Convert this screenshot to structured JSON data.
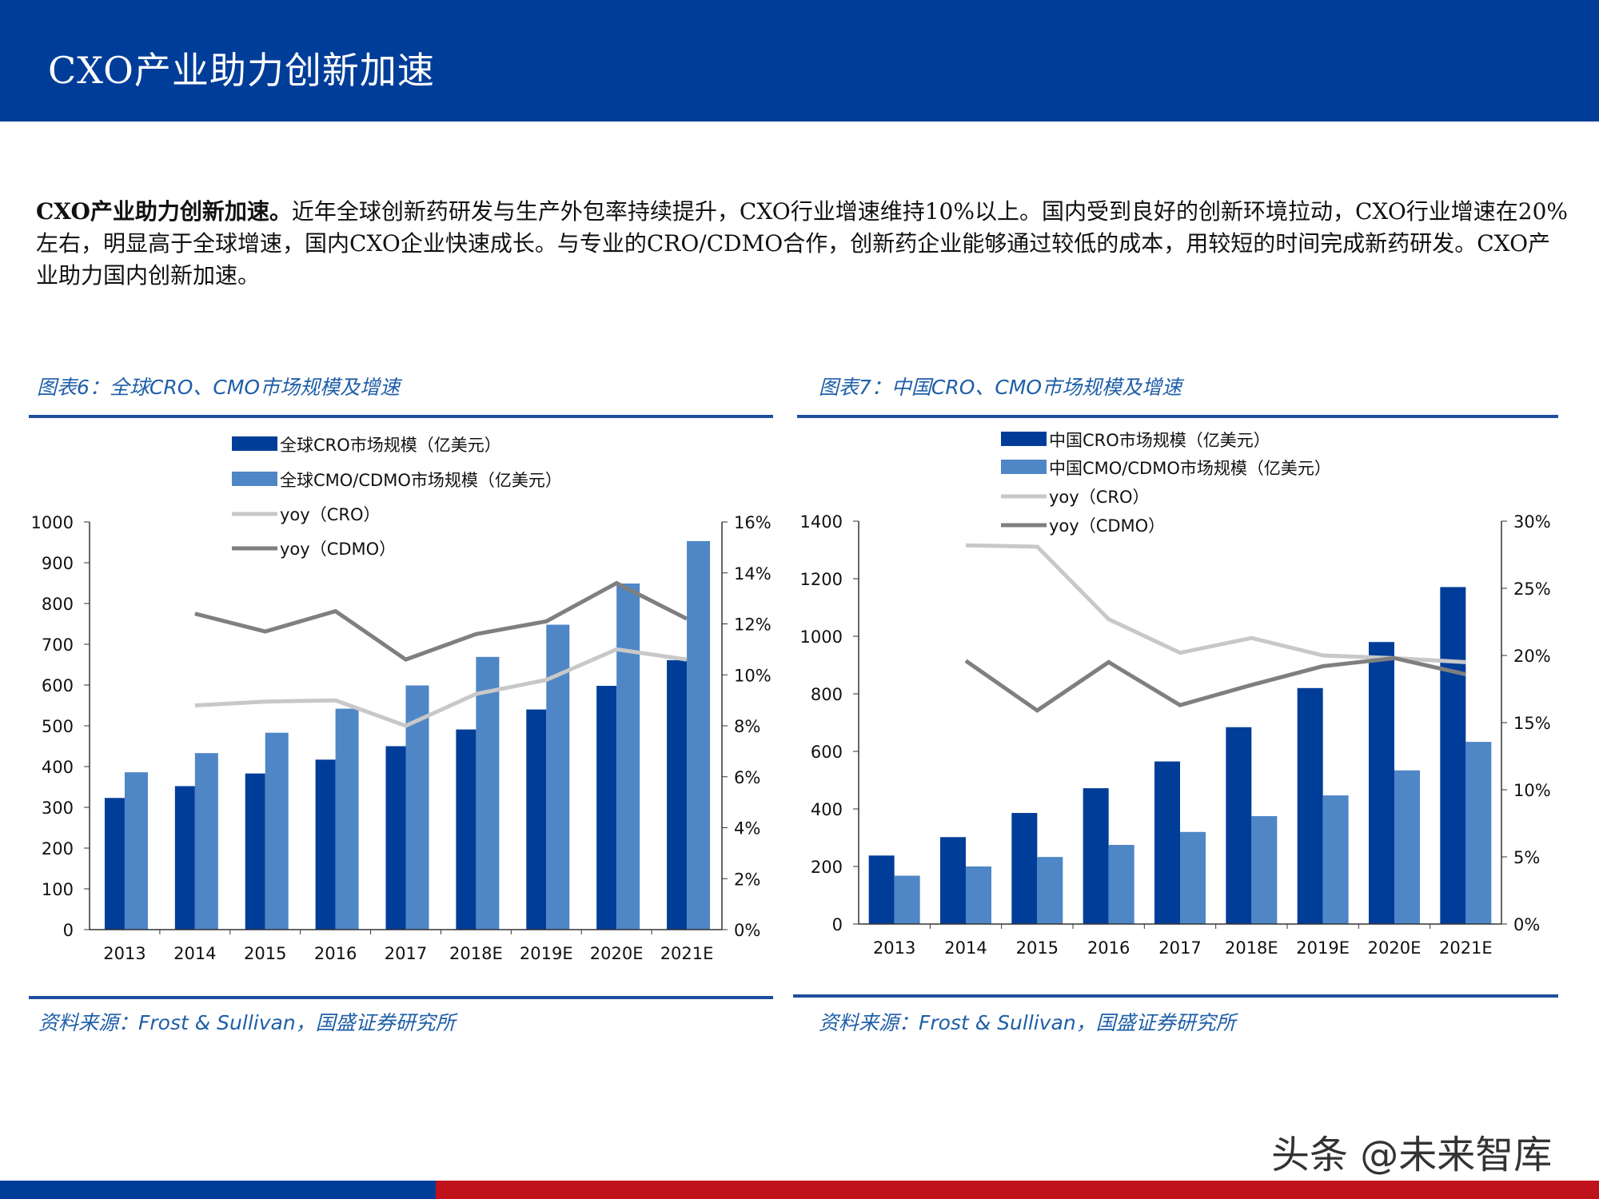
{
  "header": {
    "title": "CXO产业助力创新加速"
  },
  "paragraph": {
    "lead": "CXO产业助力创新加速。",
    "body": "近年全球创新药研发与生产外包率持续提升，CXO行业增速维持10%以上。国内受到良好的创新环境拉动，CXO行业增速在20%左右，明显高于全球增速，国内CXO企业快速成长。与专业的CRO/CDMO合作，创新药企业能够通过较低的成本，用较短的时间完成新药研发。CXO产业助力国内创新加速。"
  },
  "charts": [
    {
      "title": "图表6：全球CRO、CMO市场规模及增速",
      "source": "资料来源：Frost & Sullivan，国盛证券研究所"
    },
    {
      "title": "图表7：中国CRO、CMO市场规模及增速",
      "source": "资料来源：Frost & Sullivan，国盛证券研究所"
    }
  ],
  "watermark": "头条 @未来智库",
  "colors": {
    "header": "#003d99",
    "cro_bar": "#003d99",
    "cmo_bar": "#4f86c6",
    "yoy_cro": "#c8c8c8",
    "yoy_cdmo": "#7f7f7f",
    "footer_red": "#c0121b"
  },
  "chart_data": [
    {
      "type": "bar+line",
      "categories": [
        "2013",
        "2014",
        "2015",
        "2016",
        "2017",
        "2018E",
        "2019E",
        "2020E",
        "2021E"
      ],
      "ylim": [
        0,
        1000
      ],
      "yticks": [
        "0",
        "100",
        "200",
        "300",
        "400",
        "500",
        "600",
        "700",
        "800",
        "900",
        "1000"
      ],
      "y2lim": [
        0,
        16
      ],
      "y2ticks": [
        "0%",
        "2%",
        "4%",
        "6%",
        "8%",
        "10%",
        "12%",
        "14%",
        "16%"
      ],
      "legend": "top-left",
      "series": [
        {
          "name": "全球CRO市场规模（亿美元）",
          "type": "bar",
          "values": [
            323,
            352,
            383,
            417,
            450,
            491,
            540,
            598,
            661
          ]
        },
        {
          "name": "全球CMO/CDMO市场规模（亿美元）",
          "type": "bar",
          "values": [
            386,
            433,
            483,
            542,
            599,
            669,
            748,
            849,
            953
          ]
        },
        {
          "name": "yoy（CRO）",
          "type": "line",
          "axis": "right",
          "values": [
            null,
            8.8,
            8.95,
            9.0,
            8.0,
            9.25,
            9.8,
            11.0,
            10.6
          ]
        },
        {
          "name": "yoy（CDMO）",
          "type": "line",
          "axis": "right",
          "values": [
            null,
            12.4,
            11.7,
            12.5,
            10.6,
            11.6,
            12.1,
            13.6,
            12.2
          ]
        }
      ]
    },
    {
      "type": "bar+line",
      "categories": [
        "2013",
        "2014",
        "2015",
        "2016",
        "2017",
        "2018E",
        "2019E",
        "2020E",
        "2021E"
      ],
      "ylim": [
        0,
        1400
      ],
      "yticks": [
        "0",
        "200",
        "400",
        "600",
        "800",
        "1000",
        "1200",
        "1400"
      ],
      "y2lim": [
        0,
        30
      ],
      "y2ticks": [
        "0%",
        "5%",
        "10%",
        "15%",
        "20%",
        "25%",
        "30%"
      ],
      "legend": "top-left",
      "series": [
        {
          "name": "中国CRO市场规模（亿美元）",
          "type": "bar",
          "values": [
            238,
            302,
            386,
            472,
            565,
            684,
            820,
            980,
            1171
          ]
        },
        {
          "name": "中国CMO/CDMO市场规模（亿美元）",
          "type": "bar",
          "values": [
            168,
            200,
            233,
            275,
            320,
            375,
            447,
            534,
            633
          ]
        },
        {
          "name": "yoy（CRO）",
          "type": "line",
          "axis": "right",
          "values": [
            null,
            28.2,
            28.1,
            22.7,
            20.2,
            21.3,
            20.0,
            19.8,
            19.5
          ]
        },
        {
          "name": "yoy（CDMO）",
          "type": "line",
          "axis": "right",
          "values": [
            null,
            19.6,
            15.9,
            19.5,
            16.3,
            17.8,
            19.2,
            19.8,
            18.6
          ]
        }
      ]
    }
  ]
}
